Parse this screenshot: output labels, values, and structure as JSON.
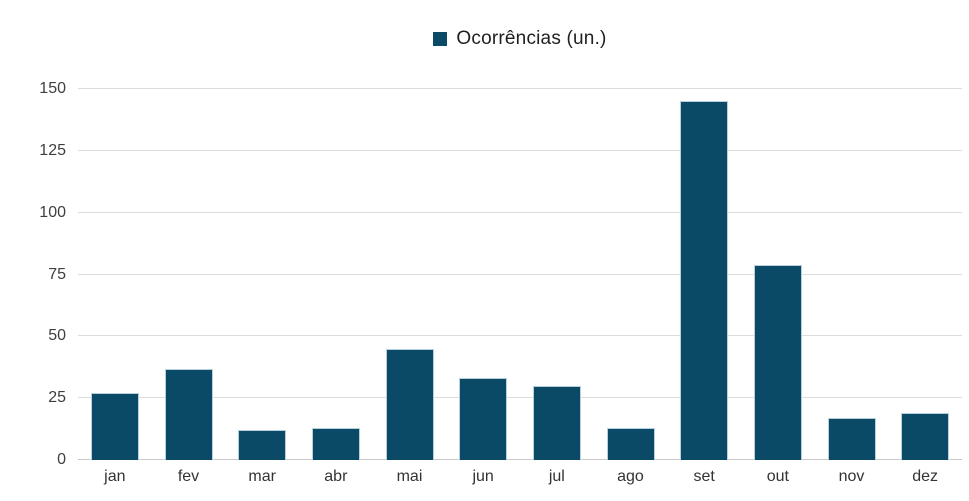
{
  "legend": {
    "label": "Ocorrências (un.)"
  },
  "chart_data": {
    "type": "bar",
    "title": "",
    "series_name": "Ocorrências (un.)",
    "categories": [
      "jan",
      "fev",
      "mar",
      "abr",
      "mai",
      "jun",
      "jul",
      "ago",
      "set",
      "out",
      "nov",
      "dez"
    ],
    "values": [
      27,
      37,
      12,
      13,
      45,
      33,
      30,
      13,
      145,
      79,
      17,
      19
    ],
    "xlabel": "",
    "ylabel": "",
    "ylim": [
      0,
      150
    ],
    "yticks": [
      0,
      25,
      50,
      75,
      100,
      125,
      150
    ],
    "grid": true,
    "legend_position": "top-center",
    "colors": {
      "bar_fill": "#0a4a66",
      "bar_edge": "#b7d0dd",
      "gridline": "#dcdcdc",
      "axis_text": "#3f3f3f",
      "legend_text": "#1f1f1f"
    }
  }
}
